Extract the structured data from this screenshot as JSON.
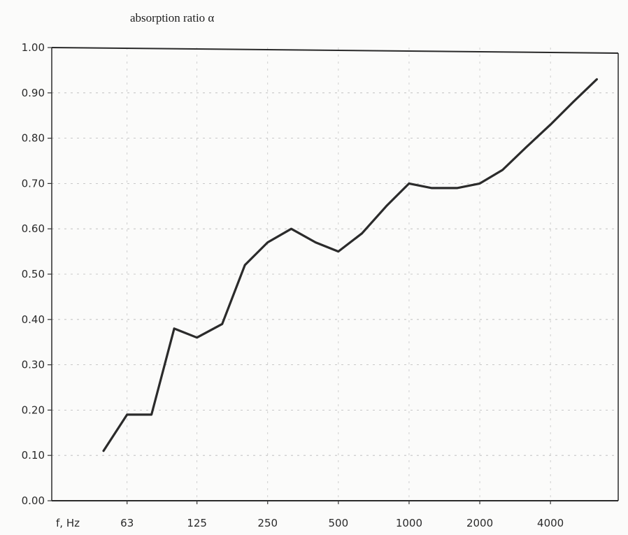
{
  "chart_data": {
    "type": "line",
    "title": "absorption ratio α",
    "xlabel": "f, Hz",
    "ylabel": "",
    "x_axis_label": "f, Hz",
    "x_scale": "log (third-octave points)",
    "ylim": [
      0.0,
      1.0
    ],
    "y_ticks": [
      "0.00",
      "0.10",
      "0.20",
      "0.30",
      "0.40",
      "0.50",
      "0.60",
      "0.70",
      "0.80",
      "0.90",
      "1.00"
    ],
    "x_tick_labels": [
      "63",
      "125",
      "250",
      "500",
      "1000",
      "2000",
      "4000"
    ],
    "grid": true,
    "line_color": "#2b2b2b",
    "series": [
      {
        "x": [
          50,
          63,
          80,
          100,
          125,
          160,
          200,
          250,
          315,
          400,
          500,
          630,
          800,
          1000,
          1250,
          1600,
          2000,
          2500,
          3150,
          4000,
          5000,
          6300
        ],
        "values": [
          0.11,
          0.19,
          0.19,
          0.38,
          0.36,
          0.39,
          0.52,
          0.57,
          0.6,
          0.57,
          0.55,
          0.59,
          0.65,
          0.7,
          0.69,
          0.69,
          0.7,
          0.73,
          0.78,
          0.83,
          0.88,
          0.93
        ]
      }
    ]
  }
}
